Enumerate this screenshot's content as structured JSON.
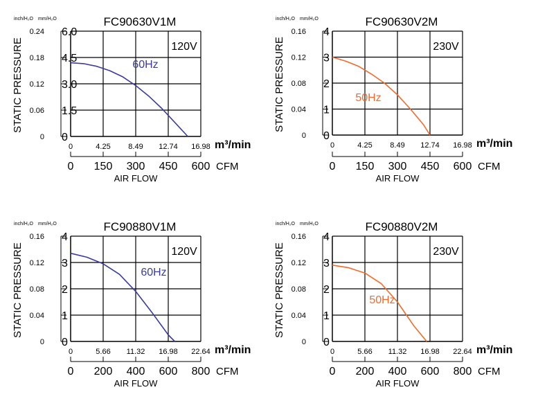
{
  "chart_data": [
    {
      "type": "line",
      "title": "FC90630V1M",
      "voltage": "120V",
      "ylabel": "STATIC PRESSURE",
      "xlabel": "AIR FLOW",
      "y_unit_inch": "inch/H₂O",
      "y_unit_mm": "mm/H₂O",
      "x_unit_m3": "m³/min",
      "x_unit_cfm": "CFM",
      "y_ticks_inch": [
        "0",
        "0.06",
        "0.12",
        "0.18",
        "0.24"
      ],
      "y_ticks_mm": [
        "0",
        "1.5",
        "3.0",
        "4.5",
        "6.0"
      ],
      "ylim_mm": [
        0,
        6
      ],
      "x_ticks_m3": [
        "0",
        "4.25",
        "8.49",
        "12.74",
        "16.98"
      ],
      "x_ticks_cfm": [
        "0",
        "150",
        "300",
        "450",
        "600"
      ],
      "xlim_cfm": [
        0,
        600
      ],
      "series": [
        {
          "name": "60Hz",
          "color": "#3a3aa0",
          "x": [
            0,
            60,
            120,
            180,
            240,
            300,
            360,
            420,
            480,
            540
          ],
          "y": [
            4.2,
            4.15,
            4.0,
            3.75,
            3.4,
            2.9,
            2.3,
            1.6,
            0.8,
            0
          ]
        }
      ]
    },
    {
      "type": "line",
      "title": "FC90630V2M",
      "voltage": "230V",
      "ylabel": "STATIC PRESSURE",
      "xlabel": "AIR FLOW",
      "y_unit_inch": "inch/H₂O",
      "y_unit_mm": "mm/H₂O",
      "x_unit_m3": "m³/min",
      "x_unit_cfm": "CFM",
      "y_ticks_inch": [
        "0",
        "0.04",
        "0.08",
        "0.12",
        "0.16"
      ],
      "y_ticks_mm": [
        "0",
        "1",
        "2",
        "3",
        "4"
      ],
      "ylim_mm": [
        0,
        4
      ],
      "x_ticks_m3": [
        "0",
        "4.25",
        "8.49",
        "12.74",
        "16.98"
      ],
      "x_ticks_cfm": [
        "0",
        "150",
        "300",
        "450",
        "600"
      ],
      "xlim_cfm": [
        0,
        600
      ],
      "series": [
        {
          "name": "50Hz",
          "color": "#f06a2a",
          "x": [
            0,
            60,
            120,
            180,
            240,
            300,
            360,
            420,
            450
          ],
          "y": [
            3.0,
            2.85,
            2.65,
            2.35,
            2.0,
            1.55,
            1.0,
            0.4,
            0
          ]
        }
      ]
    },
    {
      "type": "line",
      "title": "FC90880V1M",
      "voltage": "120V",
      "ylabel": "STATIC PRESSURE",
      "xlabel": "AIR FLOW",
      "y_unit_inch": "inch/H₂O",
      "y_unit_mm": "mm/H₂O",
      "x_unit_m3": "m³/min",
      "x_unit_cfm": "CFM",
      "y_ticks_inch": [
        "0",
        "0.04",
        "0.08",
        "0.12",
        "0.16"
      ],
      "y_ticks_mm": [
        "0",
        "1",
        "2",
        "3",
        "4"
      ],
      "ylim_mm": [
        0,
        4
      ],
      "x_ticks_m3": [
        "0",
        "5.66",
        "11.32",
        "16.98",
        "22.64"
      ],
      "x_ticks_cfm": [
        "0",
        "200",
        "400",
        "600",
        "800"
      ],
      "xlim_cfm": [
        0,
        800
      ],
      "series": [
        {
          "name": "60Hz",
          "color": "#3a3aa0",
          "x": [
            0,
            100,
            200,
            300,
            400,
            500,
            600,
            640
          ],
          "y": [
            3.35,
            3.2,
            2.95,
            2.55,
            1.9,
            1.1,
            0.25,
            0
          ]
        }
      ]
    },
    {
      "type": "line",
      "title": "FC90880V2M",
      "voltage": "230V",
      "ylabel": "STATIC PRESSURE",
      "xlabel": "AIR FLOW",
      "y_unit_inch": "inch/H₂O",
      "y_unit_mm": "mm/H₂O",
      "x_unit_m3": "m³/min",
      "x_unit_cfm": "CFM",
      "y_ticks_inch": [
        "0",
        "0.04",
        "0.08",
        "0.12",
        "0.16"
      ],
      "y_ticks_mm": [
        "0",
        "1",
        "2",
        "3",
        "4"
      ],
      "ylim_mm": [
        0,
        4
      ],
      "x_ticks_m3": [
        "0",
        "5.66",
        "11.32",
        "16.98",
        "22.64"
      ],
      "x_ticks_cfm": [
        "0",
        "200",
        "400",
        "600",
        "800"
      ],
      "xlim_cfm": [
        0,
        800
      ],
      "series": [
        {
          "name": "50Hz",
          "color": "#f06a2a",
          "x": [
            0,
            100,
            200,
            300,
            400,
            500,
            580
          ],
          "y": [
            2.9,
            2.8,
            2.6,
            2.2,
            1.5,
            0.6,
            0
          ]
        }
      ]
    }
  ]
}
